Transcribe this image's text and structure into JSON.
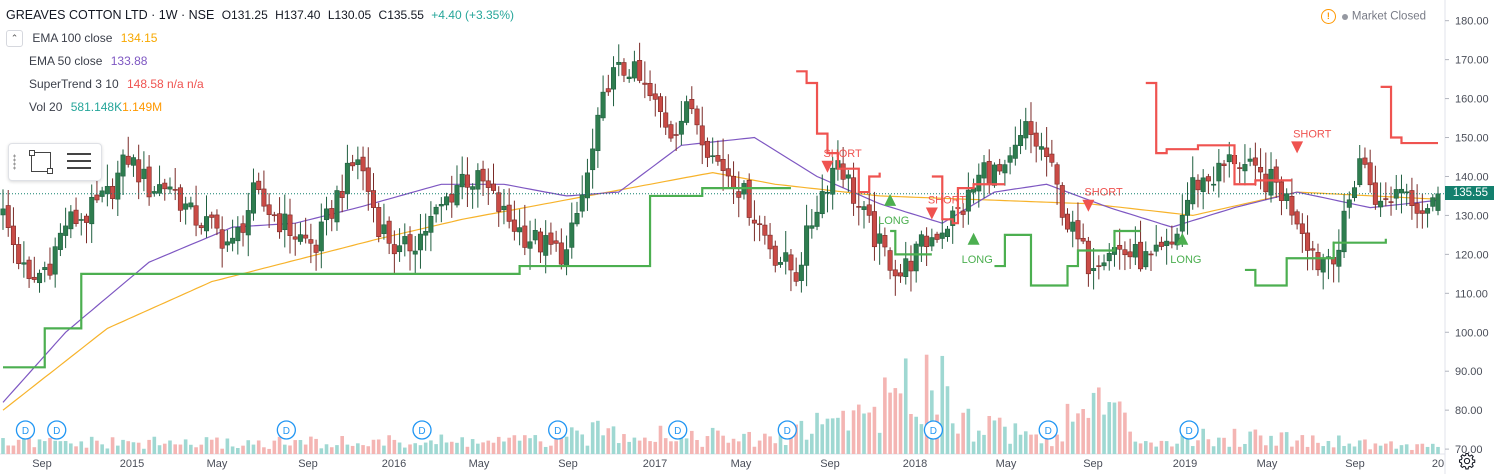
{
  "header": {
    "title": "GREAVES COTTON LTD · 1W · NSE",
    "open": "O131.25",
    "high": "H137.40",
    "low": "L130.05",
    "close": "C135.55",
    "change": "+4.40 (+3.35%)"
  },
  "indicators": [
    {
      "name": "EMA 100 close",
      "value": "134.15",
      "color": "#f7b32b"
    },
    {
      "name": "EMA 50 close",
      "value": "133.88",
      "color": "#7e57c2"
    },
    {
      "name": "SuperTrend 3 10",
      "value": "148.58  n/a  n/a",
      "color": "#ef5350"
    },
    {
      "name": "Vol 20",
      "value": "581.148K",
      "value2": "1.149M",
      "color": "#26a69a",
      "color2": "#ff9800"
    }
  ],
  "market_status": {
    "icon": "warning-icon",
    "label": "Market Closed"
  },
  "last_price": {
    "label": "135.55",
    "color": "#13806e"
  },
  "colors": {
    "up": "#26a69a",
    "down": "#ef5350",
    "up_body": "#2e7d4f",
    "down_body": "#c94b46",
    "ema100": "#f7b32b",
    "ema50": "#7e57c2",
    "st_up": "#4caf50",
    "st_down": "#ef5350"
  },
  "chart_data": {
    "type": "candlestick",
    "y_axis": {
      "ticks": [
        70,
        80,
        90,
        100,
        110,
        120,
        130,
        140,
        150,
        160,
        170,
        180
      ],
      "ylim": [
        69,
        183
      ],
      "labels": [
        "70.00",
        "80.00",
        "90.00",
        "100.00",
        "110.00",
        "120.00",
        "130.00",
        "140.00",
        "150.00",
        "160.00",
        "170.00",
        "180.00"
      ]
    },
    "x_axis": {
      "labels": [
        "Sep",
        "2015",
        "May",
        "Sep",
        "2016",
        "May",
        "Sep",
        "2017",
        "May",
        "Sep",
        "2018",
        "May",
        "Sep",
        "2019",
        "May",
        "Sep",
        "20"
      ]
    },
    "close_anchors": [
      [
        0,
        130
      ],
      [
        5,
        112
      ],
      [
        9,
        118
      ],
      [
        12,
        128
      ],
      [
        16,
        130
      ],
      [
        20,
        135
      ],
      [
        24,
        145
      ],
      [
        28,
        137
      ],
      [
        32,
        138
      ],
      [
        36,
        130
      ],
      [
        40,
        127
      ],
      [
        44,
        122
      ],
      [
        48,
        135
      ],
      [
        52,
        130
      ],
      [
        56,
        125
      ],
      [
        60,
        122
      ],
      [
        64,
        135
      ],
      [
        68,
        145
      ],
      [
        72,
        128
      ],
      [
        76,
        120
      ],
      [
        80,
        125
      ],
      [
        84,
        132
      ],
      [
        88,
        140
      ],
      [
        92,
        138
      ],
      [
        96,
        130
      ],
      [
        100,
        125
      ],
      [
        104,
        122
      ],
      [
        108,
        120
      ],
      [
        112,
        140
      ],
      [
        116,
        165
      ],
      [
        120,
        168
      ],
      [
        124,
        160
      ],
      [
        128,
        152
      ],
      [
        132,
        158
      ],
      [
        136,
        145
      ],
      [
        140,
        140
      ],
      [
        144,
        130
      ],
      [
        148,
        120
      ],
      [
        152,
        115
      ],
      [
        156,
        133
      ],
      [
        160,
        145
      ],
      [
        164,
        132
      ],
      [
        168,
        122
      ],
      [
        172,
        115
      ],
      [
        176,
        122
      ],
      [
        180,
        127
      ],
      [
        184,
        132
      ],
      [
        188,
        142
      ],
      [
        192,
        140
      ],
      [
        196,
        152
      ],
      [
        200,
        145
      ],
      [
        204,
        128
      ],
      [
        208,
        118
      ],
      [
        212,
        122
      ],
      [
        216,
        120
      ],
      [
        220,
        118
      ],
      [
        224,
        122
      ],
      [
        228,
        138
      ],
      [
        232,
        140
      ],
      [
        236,
        145
      ],
      [
        240,
        140
      ],
      [
        244,
        138
      ],
      [
        248,
        130
      ],
      [
        252,
        118
      ],
      [
        256,
        122
      ],
      [
        260,
        145
      ],
      [
        264,
        132
      ],
      [
        268,
        138
      ],
      [
        272,
        132
      ],
      [
        275,
        136
      ]
    ],
    "volume_anchors": [
      [
        0,
        1
      ],
      [
        50,
        1
      ],
      [
        105,
        1.2
      ],
      [
        118,
        2.3
      ],
      [
        145,
        1.2
      ],
      [
        172,
        5
      ],
      [
        178,
        8
      ],
      [
        185,
        3
      ],
      [
        200,
        1.5
      ],
      [
        210,
        5
      ],
      [
        218,
        1.4
      ],
      [
        228,
        1.4
      ],
      [
        240,
        1.7
      ],
      [
        256,
        1.2
      ],
      [
        275,
        0.6
      ]
    ],
    "ema100": [
      [
        0,
        80
      ],
      [
        20,
        101
      ],
      [
        40,
        113
      ],
      [
        56,
        118.5
      ],
      [
        72,
        124
      ],
      [
        88,
        129
      ],
      [
        104,
        133
      ],
      [
        116,
        136
      ],
      [
        136,
        141
      ],
      [
        148,
        138
      ],
      [
        168,
        135
      ],
      [
        188,
        134
      ],
      [
        208,
        133
      ],
      [
        228,
        130
      ],
      [
        248,
        136
      ],
      [
        275,
        134.15
      ]
    ],
    "ema50": [
      [
        0,
        82
      ],
      [
        12,
        100
      ],
      [
        28,
        118
      ],
      [
        44,
        127
      ],
      [
        56,
        128
      ],
      [
        68,
        132
      ],
      [
        84,
        138
      ],
      [
        96,
        138
      ],
      [
        108,
        135
      ],
      [
        118,
        136
      ],
      [
        130,
        148
      ],
      [
        144,
        150
      ],
      [
        156,
        140
      ],
      [
        168,
        133
      ],
      [
        180,
        128
      ],
      [
        190,
        136
      ],
      [
        200,
        138
      ],
      [
        212,
        132
      ],
      [
        224,
        127
      ],
      [
        236,
        132
      ],
      [
        248,
        136
      ],
      [
        262,
        132
      ],
      [
        275,
        133.88
      ]
    ],
    "supertrend": [
      {
        "dir": "up",
        "points": [
          [
            0,
            91
          ],
          [
            7,
            91
          ],
          [
            8,
            101
          ],
          [
            14,
            101
          ],
          [
            15,
            115
          ],
          [
            30,
            115
          ],
          [
            31,
            115
          ],
          [
            98,
            115
          ],
          [
            99,
            117
          ],
          [
            123,
            117
          ],
          [
            124,
            135
          ],
          [
            133,
            135
          ],
          [
            134,
            137
          ],
          [
            150,
            137
          ],
          [
            151,
            137
          ]
        ]
      },
      {
        "dir": "down",
        "points": [
          [
            152,
            167
          ],
          [
            154,
            164
          ],
          [
            156,
            151
          ],
          [
            158,
            146
          ],
          [
            160,
            142
          ],
          [
            162,
            142
          ],
          [
            164,
            136
          ],
          [
            166,
            140
          ],
          [
            168,
            141
          ]
        ]
      },
      {
        "dir": "up",
        "points": [
          [
            170,
            126
          ],
          [
            171,
            120
          ],
          [
            177,
            120
          ],
          [
            178,
            120
          ]
        ]
      },
      {
        "dir": "down",
        "points": [
          [
            178,
            140
          ],
          [
            180,
            129
          ],
          [
            182,
            128
          ],
          [
            183,
            137
          ],
          [
            186,
            138
          ],
          [
            192,
            138
          ]
        ]
      },
      {
        "dir": "up",
        "points": [
          [
            190,
            117
          ],
          [
            192,
            125
          ],
          [
            196,
            125
          ],
          [
            197,
            112
          ],
          [
            203,
            112
          ],
          [
            204,
            117
          ],
          [
            206,
            121
          ],
          [
            210,
            121
          ],
          [
            213,
            126
          ],
          [
            218,
            126
          ]
        ]
      },
      {
        "dir": "down",
        "points": [
          [
            219,
            164
          ],
          [
            221,
            146
          ],
          [
            223,
            147
          ],
          [
            229,
            148
          ],
          [
            234,
            148
          ],
          [
            236,
            138
          ],
          [
            240,
            139
          ],
          [
            244,
            139
          ],
          [
            247,
            139
          ]
        ]
      },
      {
        "dir": "up",
        "points": [
          [
            238,
            116
          ],
          [
            240,
            112
          ],
          [
            244,
            112
          ],
          [
            246,
            119
          ],
          [
            254,
            119
          ],
          [
            255,
            123
          ],
          [
            264,
            123
          ],
          [
            265,
            124
          ]
        ]
      },
      {
        "dir": "down",
        "points": [
          [
            264,
            163
          ],
          [
            266,
            150
          ],
          [
            268,
            148.58
          ],
          [
            275,
            148.58
          ]
        ]
      }
    ],
    "signals": [
      {
        "label": "SHORT",
        "dir": "short",
        "x": 158,
        "price": 143
      },
      {
        "label": "LONG",
        "dir": "long",
        "x": 170,
        "price": 134
      },
      {
        "label": "SHORT",
        "dir": "short",
        "x": 178,
        "price": 131
      },
      {
        "label": "LONG",
        "dir": "long",
        "x": 186,
        "price": 124
      },
      {
        "label": "SHORT",
        "dir": "short",
        "x": 208,
        "price": 133
      },
      {
        "label": "LONG",
        "dir": "long",
        "x": 226,
        "price": 124
      },
      {
        "label": "SHORT",
        "dir": "short",
        "x": 248,
        "price": 148
      }
    ],
    "dividend_markers": {
      "label": "D",
      "x": [
        2,
        8,
        52,
        78,
        104,
        127,
        148,
        176,
        198,
        225
      ]
    }
  }
}
